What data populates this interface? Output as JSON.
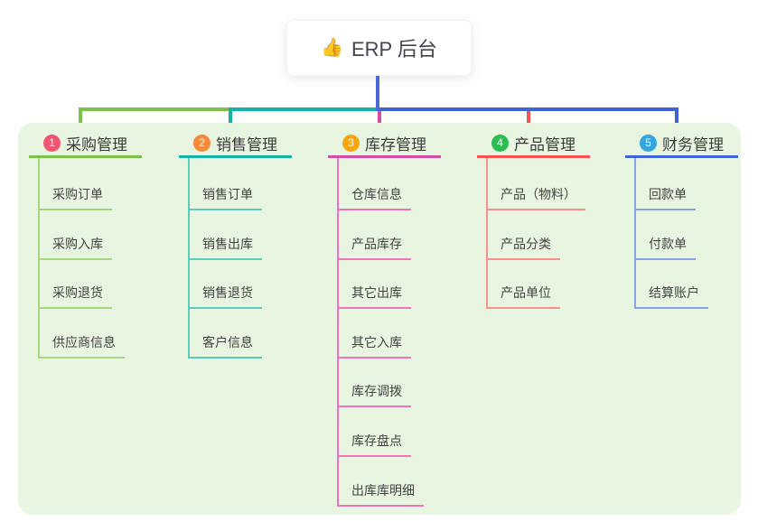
{
  "root": {
    "icon": "👍",
    "title": "ERP 后台"
  },
  "colors": {
    "page_bg": "#ffffff",
    "panel_bg": "#e8f6e1",
    "trunk_blue": "#4b68d9",
    "root_text": "#3e4450",
    "node_text": "#3b3b3b"
  },
  "branches": [
    {
      "number": "1",
      "title": "采购管理",
      "badge_color": "#f35570",
      "line_color": "#7cc24a",
      "child_line_color": "#a6d77f",
      "children": [
        "采购订单",
        "采购入库",
        "采购退货",
        "供应商信息"
      ]
    },
    {
      "number": "2",
      "title": "销售管理",
      "badge_color": "#f58a3a",
      "line_color": "#17b2a6",
      "child_line_color": "#5ccabd",
      "children": [
        "销售订单",
        "销售出库",
        "销售退货",
        "客户信息"
      ]
    },
    {
      "number": "3",
      "title": "库存管理",
      "badge_color": "#f7a60f",
      "line_color": "#d44ca7",
      "child_line_color": "#ee74bb",
      "children": [
        "仓库信息",
        "产品库存",
        "其它出库",
        "其它入库",
        "库存调拨",
        "库存盘点",
        "出库库明细"
      ]
    },
    {
      "number": "4",
      "title": "产品管理",
      "badge_color": "#2bbd51",
      "line_color": "#f8514e",
      "child_line_color": "#fa918c",
      "children": [
        "产品（物料）",
        "产品分类",
        "产品单位"
      ]
    },
    {
      "number": "5",
      "title": "财务管理",
      "badge_color": "#34a5dd",
      "line_color": "#3e63d4",
      "child_line_color": "#8ba1e2",
      "children": [
        "回款单",
        "付款单",
        "结算账户"
      ]
    }
  ]
}
